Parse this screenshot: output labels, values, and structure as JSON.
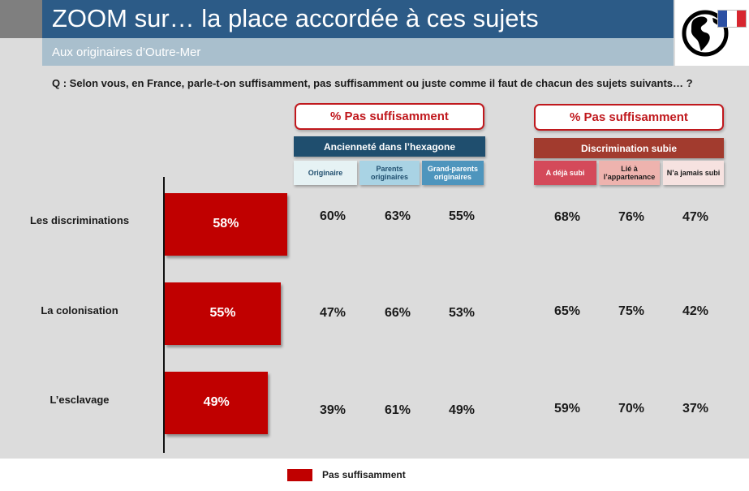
{
  "header": {
    "title": "ZOOM sur… la place accordée à ces sujets",
    "subtitle": "Aux originaires d’Outre-Mer"
  },
  "question": "Q : Selon vous, en France, parle-t-on suffisamment, pas suffisamment ou juste comme il faut de chacun des sujets suivants… ?",
  "groups": [
    {
      "pct_label": "% Pas suffisamment",
      "heading": "Ancienneté dans l’hexagone",
      "columns": [
        "Originaire",
        "Parents originaires",
        "Grand-parents originaires"
      ]
    },
    {
      "pct_label": "% Pas suffisamment",
      "heading": "Discrimination subie",
      "columns": [
        "A déjà subi",
        "Lié à l’appartenance",
        "N’a jamais subi"
      ]
    }
  ],
  "rows": [
    {
      "label": "Les discriminations",
      "values": [
        "60%",
        "63%",
        "55%",
        "68%",
        "76%",
        "47%"
      ]
    },
    {
      "label": "La colonisation",
      "values": [
        "47%",
        "66%",
        "53%",
        "65%",
        "75%",
        "42%"
      ]
    },
    {
      "label": "L’esclavage",
      "values": [
        "39%",
        "61%",
        "49%",
        "59%",
        "70%",
        "37%"
      ]
    }
  ],
  "colors": {
    "bar": "#c00000",
    "title_bar": "#2c5b87",
    "group1_heading": "#1f4e6e",
    "group2_heading": "#a23b2e"
  },
  "chart_data": {
    "type": "bar",
    "orientation": "horizontal",
    "categories": [
      "Les discriminations",
      "La colonisation",
      "L’esclavage"
    ],
    "series": [
      {
        "name": "Pas suffisamment",
        "values": [
          58,
          55,
          49
        ]
      }
    ],
    "data_labels": [
      "58%",
      "55%",
      "49%"
    ],
    "xlim": [
      0,
      100
    ],
    "legend": {
      "position": "bottom",
      "entries": [
        "Pas suffisamment"
      ]
    }
  }
}
